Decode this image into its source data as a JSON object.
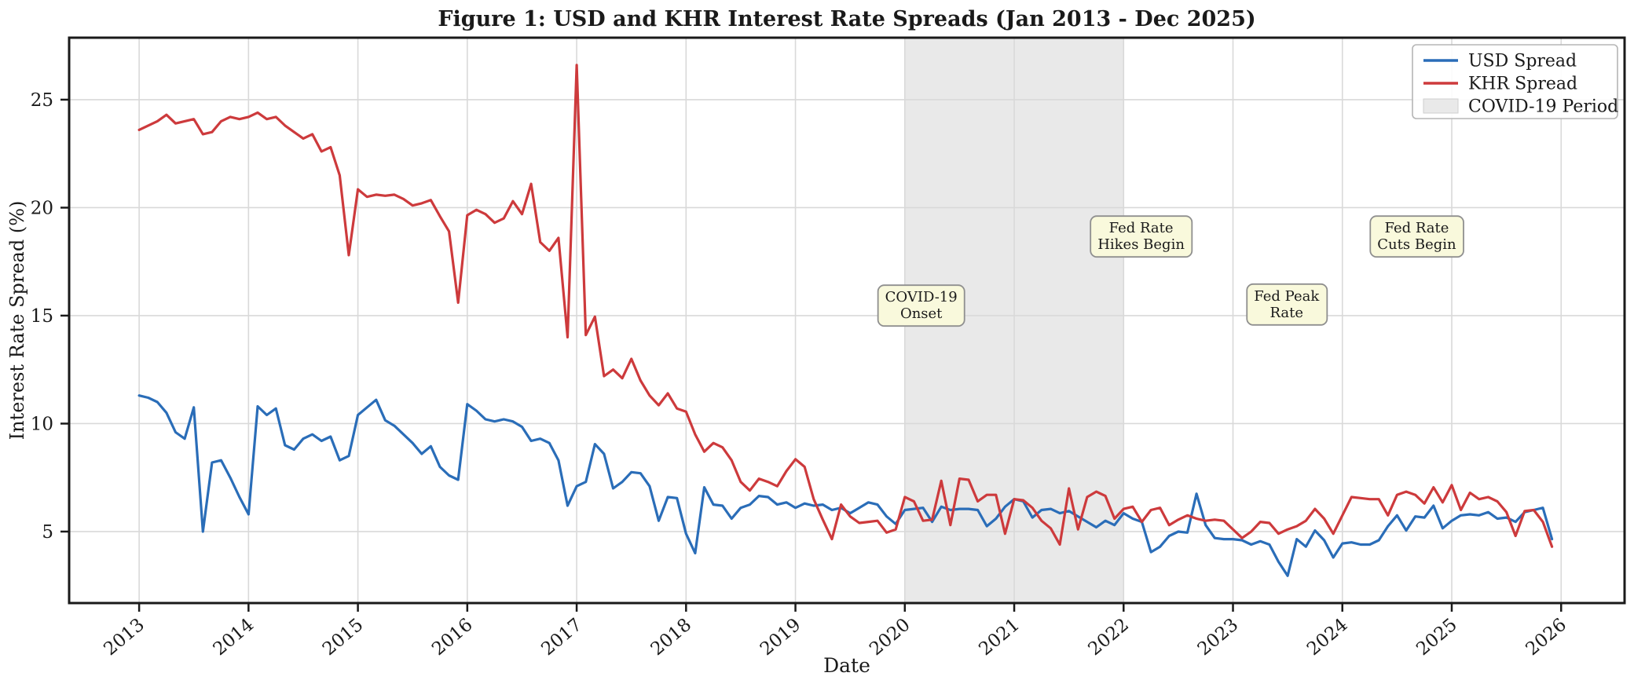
{
  "figure": {
    "title": "Figure 1: USD and KHR Interest Rate Spreads (Jan 2013 - Dec 2025)",
    "xlabel": "Date",
    "ylabel": "Interest Rate Spread (%)"
  },
  "legend": {
    "position": "upper right",
    "items": [
      {
        "label": "USD Spread",
        "type": "line",
        "color": "#2a6db8"
      },
      {
        "label": "KHR Spread",
        "type": "line",
        "color": "#cd3a3c"
      },
      {
        "label": "COVID-19 Period",
        "type": "patch",
        "color": "#e9e9e9"
      }
    ]
  },
  "chart_data": {
    "type": "line",
    "title": "Figure 1: USD and KHR Interest Rate Spreads (Jan 2013 - Dec 2025)",
    "xlabel": "Date",
    "ylabel": "Interest Rate Spread (%)",
    "grid": true,
    "grid_color": "#d9d9d9",
    "x_frequency": "monthly",
    "x_start": "2013-01",
    "x_end": "2025-12",
    "x_ticks": [
      2013,
      2014,
      2015,
      2016,
      2017,
      2018,
      2019,
      2020,
      2021,
      2022,
      2023,
      2024,
      2025,
      2026
    ],
    "y_ticks": [
      5,
      10,
      15,
      20,
      25
    ],
    "x_range": [
      2012.36,
      2026.58
    ],
    "y_range": [
      1.69,
      27.87
    ],
    "shaded_region": {
      "label": "COVID-19 Period",
      "x_start": 2020.0,
      "x_end": 2022.0,
      "color": "#e9e9e9"
    },
    "annotations": [
      {
        "lines": [
          "COVID-19",
          "Onset"
        ],
        "x": 2020.15,
        "y": 15.5
      },
      {
        "lines": [
          "Fed Rate",
          "Hikes Begin"
        ],
        "x": 2022.16,
        "y": 18.7
      },
      {
        "lines": [
          "Fed Peak",
          "Rate"
        ],
        "x": 2023.49,
        "y": 15.55
      },
      {
        "lines": [
          "Fed Rate",
          "Cuts Begin"
        ],
        "x": 2024.68,
        "y": 18.7
      }
    ],
    "series": [
      {
        "name": "USD Spread",
        "color": "#2a6db8",
        "values": [
          11.3,
          11.2,
          11.0,
          10.5,
          9.6,
          9.3,
          10.75,
          5.0,
          8.2,
          8.3,
          7.5,
          6.6,
          5.8,
          10.8,
          10.4,
          10.7,
          9.0,
          8.8,
          9.3,
          9.5,
          9.2,
          9.4,
          8.3,
          8.5,
          10.4,
          10.75,
          11.1,
          10.15,
          9.9,
          9.5,
          9.1,
          8.6,
          8.95,
          8.0,
          7.6,
          7.4,
          10.9,
          10.6,
          10.2,
          10.1,
          10.2,
          10.1,
          9.85,
          9.2,
          9.3,
          9.1,
          8.3,
          6.2,
          7.1,
          7.3,
          9.05,
          8.6,
          7.0,
          7.3,
          7.75,
          7.7,
          7.1,
          5.5,
          6.6,
          6.55,
          4.9,
          4.0,
          7.05,
          6.25,
          6.2,
          5.6,
          6.1,
          6.25,
          6.65,
          6.6,
          6.25,
          6.35,
          6.1,
          6.3,
          6.2,
          6.25,
          6.0,
          6.1,
          5.85,
          6.1,
          6.35,
          6.25,
          5.7,
          5.35,
          6.0,
          6.05,
          6.1,
          5.45,
          6.15,
          6.0,
          6.05,
          6.05,
          6.0,
          5.25,
          5.6,
          6.15,
          6.5,
          6.4,
          5.65,
          6.0,
          6.05,
          5.85,
          5.95,
          5.7,
          5.45,
          5.2,
          5.5,
          5.3,
          5.85,
          5.6,
          5.45,
          4.05,
          4.3,
          4.8,
          5.0,
          4.95,
          6.75,
          5.3,
          4.7,
          4.65,
          4.65,
          4.6,
          4.4,
          4.55,
          4.4,
          3.6,
          2.95,
          4.65,
          4.3,
          5.05,
          4.6,
          3.8,
          4.45,
          4.5,
          4.4,
          4.4,
          4.6,
          5.25,
          5.75,
          5.05,
          5.7,
          5.65,
          6.2,
          5.15,
          5.5,
          5.75,
          5.8,
          5.75,
          5.9,
          5.6,
          5.65,
          5.45,
          5.9,
          6.0,
          6.1,
          4.65
        ]
      },
      {
        "name": "KHR Spread",
        "color": "#cd3a3c",
        "values": [
          23.6,
          23.8,
          24.0,
          24.3,
          23.9,
          24.0,
          24.1,
          23.4,
          23.5,
          24.0,
          24.2,
          24.1,
          24.2,
          24.4,
          24.1,
          24.2,
          23.8,
          23.5,
          23.2,
          23.4,
          22.6,
          22.8,
          21.5,
          17.8,
          20.85,
          20.5,
          20.6,
          20.55,
          20.6,
          20.4,
          20.1,
          20.2,
          20.35,
          19.6,
          18.9,
          15.6,
          19.65,
          19.9,
          19.7,
          19.3,
          19.5,
          20.3,
          19.7,
          21.1,
          18.4,
          18.0,
          18.6,
          14.0,
          26.6,
          14.1,
          14.95,
          12.2,
          12.5,
          12.1,
          13.0,
          12.0,
          11.3,
          10.85,
          11.4,
          10.7,
          10.55,
          9.5,
          8.7,
          9.1,
          8.9,
          8.3,
          7.3,
          6.9,
          7.45,
          7.3,
          7.1,
          7.8,
          8.35,
          8.0,
          6.5,
          5.55,
          4.65,
          6.25,
          5.7,
          5.4,
          5.45,
          5.5,
          4.95,
          5.1,
          6.6,
          6.4,
          5.5,
          5.55,
          7.35,
          5.3,
          7.45,
          7.4,
          6.4,
          6.7,
          6.7,
          4.9,
          6.5,
          6.45,
          6.1,
          5.5,
          5.15,
          4.4,
          7.0,
          5.1,
          6.6,
          6.85,
          6.65,
          5.6,
          6.05,
          6.15,
          5.45,
          6.0,
          6.1,
          5.3,
          5.55,
          5.75,
          5.6,
          5.5,
          5.55,
          5.5,
          5.1,
          4.7,
          5.0,
          5.45,
          5.4,
          4.9,
          5.1,
          5.25,
          5.5,
          6.05,
          5.6,
          4.9,
          5.75,
          6.6,
          6.55,
          6.5,
          6.5,
          5.75,
          6.7,
          6.85,
          6.7,
          6.3,
          7.05,
          6.35,
          7.15,
          6.0,
          6.8,
          6.5,
          6.6,
          6.4,
          5.9,
          4.8,
          5.95,
          6.0,
          5.45,
          4.3
        ]
      }
    ],
    "style": {
      "annotation_box_fill": "#f9f9dc",
      "annotation_box_border": "#8f8f8f",
      "spine_color": "#1a1a1a",
      "tick_label_color": "#1a1a1a"
    }
  }
}
